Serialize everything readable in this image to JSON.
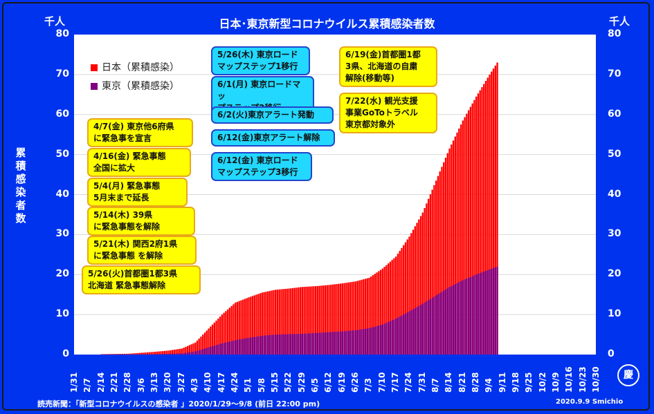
{
  "title": "日本･東京新型コロナウイルス累積感染者数",
  "unit_label": "千人",
  "y_axis_label": [
    "累",
    "積",
    "感",
    "染",
    "者",
    "数"
  ],
  "legend": {
    "japan": {
      "label": "日本（累積感染）",
      "color": "#ff0000"
    },
    "tokyo": {
      "label": "東京（累積感染）",
      "color": "#800080"
    }
  },
  "annotations": {
    "left": [
      {
        "lines": [
          "4/7(金) 東京他6府県",
          "に緊急事を宣言"
        ]
      },
      {
        "lines": [
          "4/16(金) 緊急事態",
          "全国に拡大"
        ]
      },
      {
        "lines": [
          "5/4(月) 緊急事態",
          "5月末まで延長"
        ]
      },
      {
        "lines": [
          "5/14(木) 39県",
          "に緊急事態を解除"
        ]
      },
      {
        "lines": [
          "5/21(木) 関西2府1県",
          "に緊急事態 を解除"
        ]
      },
      {
        "lines": [
          "5/26(火)首都圏1都3県",
          "北海道 緊急事態解除"
        ]
      }
    ],
    "middle": [
      {
        "lines": [
          "5/26(木) 東京ロード",
          "マップステップ1移行"
        ]
      },
      {
        "lines": [
          "6/1(月) 東京ロードマッ",
          "プステップ2移行"
        ]
      },
      {
        "lines": [
          "6/2(火)東京アラート発動"
        ]
      },
      {
        "lines": [
          "6/12(金)東京アラート解除"
        ]
      },
      {
        "lines": [
          "6/12(金) 東京ロード",
          "マップステップ3移行"
        ]
      }
    ],
    "right": [
      {
        "lines": [
          "6/19(金)首都圏1都",
          "3県、北海道の自粛",
          "解除(移動等)"
        ]
      },
      {
        "lines": [
          "7/22(水) 観光支援",
          "事業GoToトラベル",
          "東京都対象外"
        ]
      }
    ]
  },
  "footer": {
    "source": "読売新聞：「新型コロナウイルスの感染者 」2020/1/29～9/8 (前日 22:00 pm)",
    "credit": "2020.9.9  Smichio"
  },
  "seal_text": "慶",
  "chart_data": {
    "type": "bar",
    "stacked_overlay": true,
    "x_start": "1/31",
    "x_end": "10/30",
    "x_ticks": [
      "1/31",
      "2/7",
      "2/14",
      "2/21",
      "2/28",
      "3/6",
      "3/13",
      "3/20",
      "3/27",
      "4/3",
      "4/10",
      "4/17",
      "4/24",
      "5/1",
      "5/8",
      "5/15",
      "5/22",
      "5/29",
      "6/5",
      "6/12",
      "6/19",
      "6/26",
      "7/3",
      "7/10",
      "7/17",
      "7/24",
      "7/31",
      "8/7",
      "8/14",
      "8/21",
      "8/28",
      "9/4",
      "9/11",
      "9/18",
      "9/25",
      "10/2",
      "10/9",
      "10/16",
      "10/23",
      "10/30"
    ],
    "ylim": [
      0,
      80
    ],
    "yticks": [
      0,
      10,
      20,
      30,
      40,
      50,
      60,
      70,
      80
    ],
    "series": [
      {
        "name": "日本（累積感染）",
        "color": "#ff0000",
        "points": [
          [
            "2/14",
            0.1
          ],
          [
            "2/28",
            0.2
          ],
          [
            "3/13",
            0.7
          ],
          [
            "3/20",
            1.0
          ],
          [
            "3/27",
            1.5
          ],
          [
            "4/3",
            3.0
          ],
          [
            "4/10",
            6.5
          ],
          [
            "4/17",
            10.0
          ],
          [
            "4/24",
            13.0
          ],
          [
            "5/1",
            14.3
          ],
          [
            "5/8",
            15.5
          ],
          [
            "5/15",
            16.2
          ],
          [
            "5/22",
            16.5
          ],
          [
            "5/29",
            16.9
          ],
          [
            "6/5",
            17.1
          ],
          [
            "6/12",
            17.4
          ],
          [
            "6/19",
            17.8
          ],
          [
            "6/26",
            18.3
          ],
          [
            "7/3",
            19.2
          ],
          [
            "7/10",
            21.5
          ],
          [
            "7/17",
            24.5
          ],
          [
            "7/24",
            29.5
          ],
          [
            "7/31",
            35.5
          ],
          [
            "8/7",
            43.5
          ],
          [
            "8/14",
            51.5
          ],
          [
            "8/21",
            58.5
          ],
          [
            "8/28",
            64.5
          ],
          [
            "9/4",
            70.0
          ],
          [
            "9/8",
            73.0
          ]
        ]
      },
      {
        "name": "東京（累積感染）",
        "color": "#800080",
        "points": [
          [
            "2/14",
            0.0
          ],
          [
            "3/13",
            0.1
          ],
          [
            "3/27",
            0.3
          ],
          [
            "4/3",
            0.8
          ],
          [
            "4/10",
            1.8
          ],
          [
            "4/17",
            2.8
          ],
          [
            "4/24",
            3.6
          ],
          [
            "5/1",
            4.2
          ],
          [
            "5/8",
            4.7
          ],
          [
            "5/15",
            5.0
          ],
          [
            "5/22",
            5.1
          ],
          [
            "5/29",
            5.2
          ],
          [
            "6/5",
            5.4
          ],
          [
            "6/12",
            5.6
          ],
          [
            "6/19",
            5.8
          ],
          [
            "6/26",
            6.1
          ],
          [
            "7/3",
            6.6
          ],
          [
            "7/10",
            7.5
          ],
          [
            "7/17",
            9.0
          ],
          [
            "7/24",
            10.8
          ],
          [
            "7/31",
            12.7
          ],
          [
            "8/7",
            14.8
          ],
          [
            "8/14",
            16.9
          ],
          [
            "8/21",
            18.6
          ],
          [
            "8/28",
            20.0
          ],
          [
            "9/4",
            21.3
          ],
          [
            "9/8",
            22.0
          ]
        ]
      }
    ]
  }
}
